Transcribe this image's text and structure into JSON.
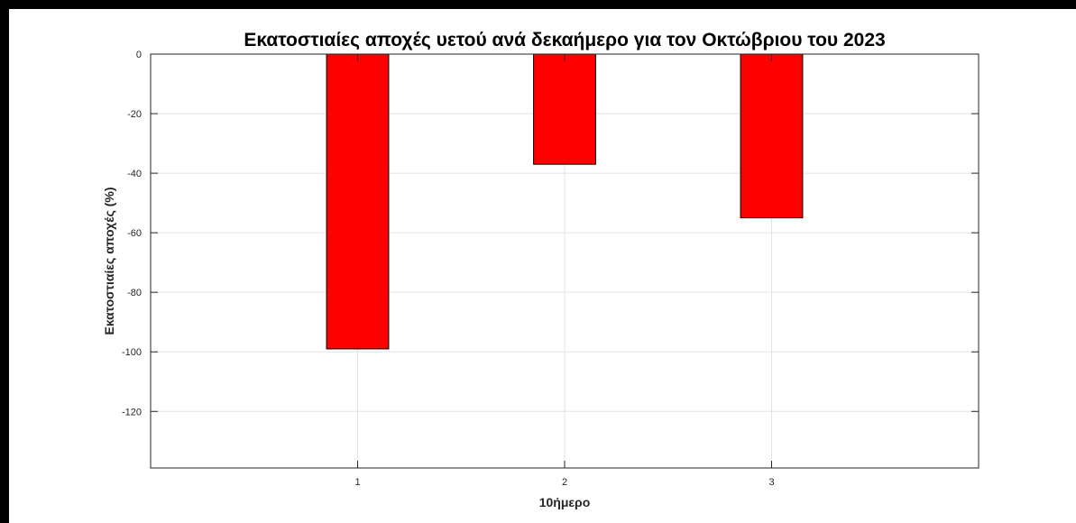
{
  "chart_data": {
    "type": "bar",
    "title": "Εκατοστιαίες αποχές υετού ανά δεκαήμερο για τον Οκτώβριου του 2023",
    "xlabel": "10ήμερο",
    "ylabel": "Εκατοστιαίες αποχές (%)",
    "categories": [
      "1",
      "2",
      "3"
    ],
    "values": [
      -99,
      -37,
      -55
    ],
    "xlim": [
      0,
      4
    ],
    "ylim": [
      -139,
      0
    ],
    "yticks": [
      0,
      -20,
      -40,
      -60,
      -80,
      -100,
      -120
    ],
    "ytick_labels": [
      "0",
      "-20",
      "-40",
      "-60",
      "-80",
      "-100",
      "-120"
    ],
    "grid": true,
    "bar_color": "#ff0000",
    "bar_edge_color": "#000000"
  }
}
